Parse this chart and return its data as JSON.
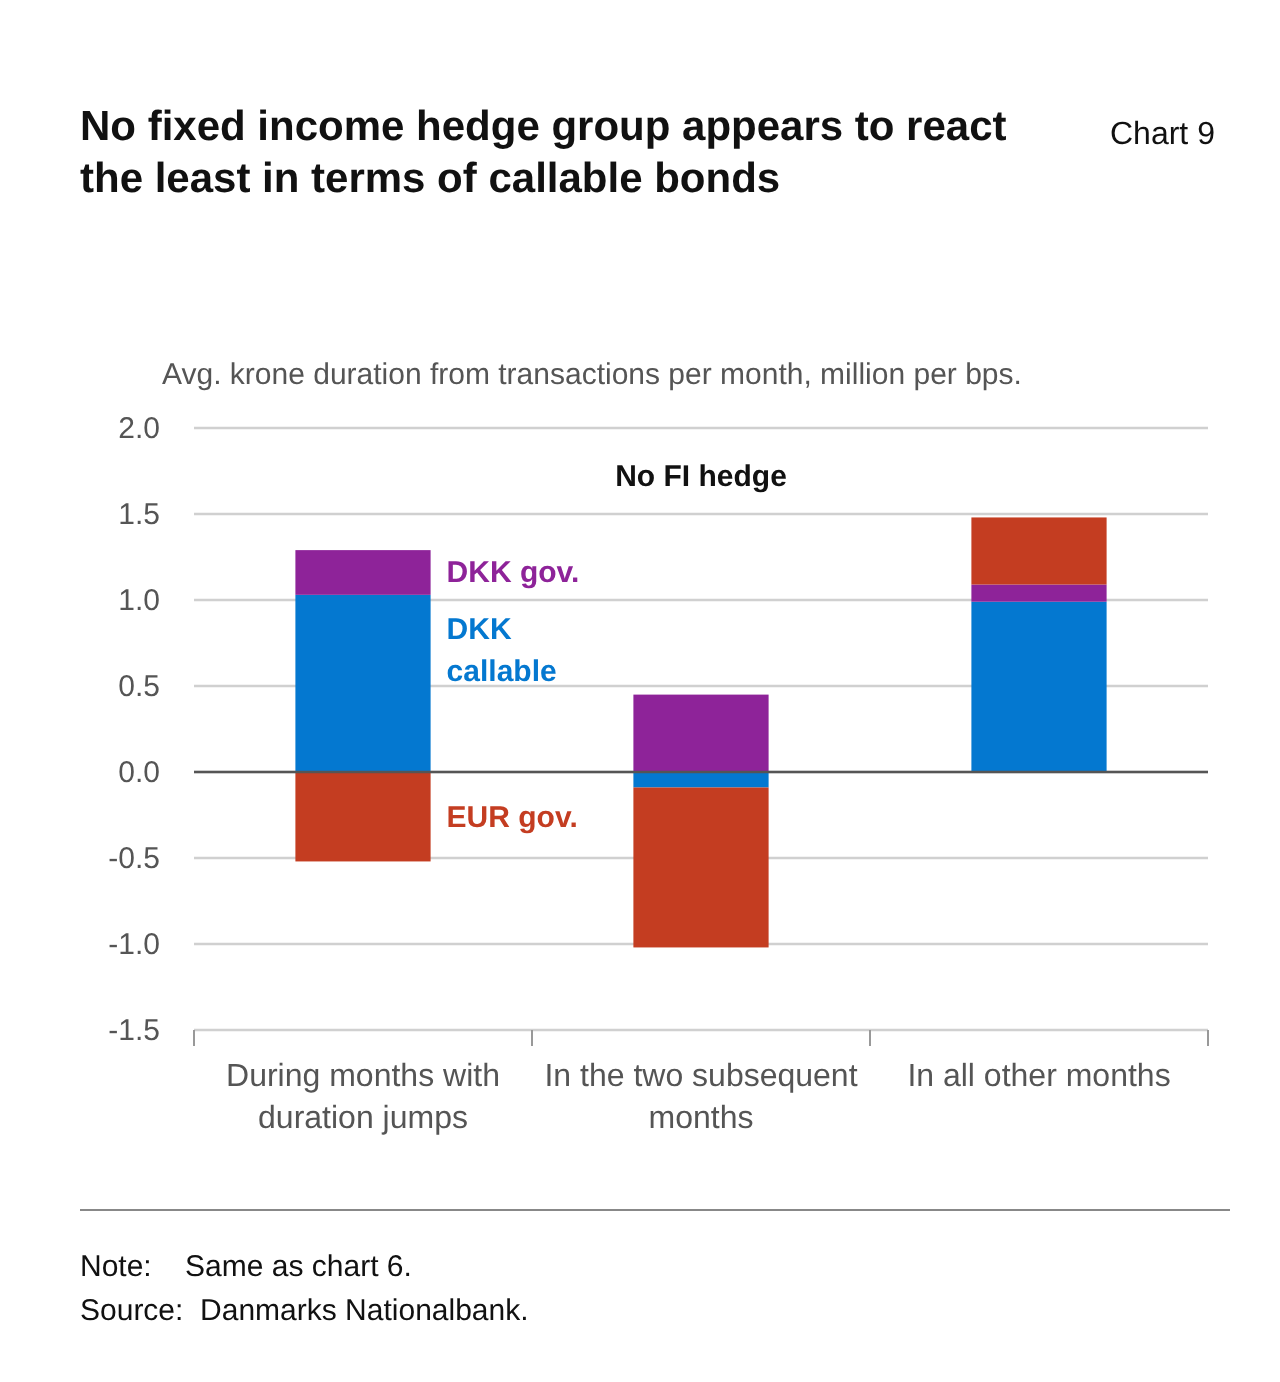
{
  "chart_data": {
    "type": "bar",
    "stacked": true,
    "title": "No fixed income hedge group appears to react the least in terms of callable bonds",
    "ylabel": "Avg. krone duration from transactions per month, million per bps.",
    "categories": [
      "During months with duration jumps",
      "In the two subsequent months",
      "In all other months"
    ],
    "series": [
      {
        "name": "DKK callable",
        "color": "#0478d0",
        "values": [
          1.03,
          -0.09,
          0.99
        ]
      },
      {
        "name": "DKK gov.",
        "color": "#8e2399",
        "values": [
          0.26,
          0.45,
          0.1
        ]
      },
      {
        "name": "EUR gov.",
        "color": "#c43d21",
        "values": [
          -0.52,
          -0.93,
          0.39
        ]
      }
    ],
    "ylim": [
      -1.5,
      2.0
    ],
    "yticks": [
      {
        "value": -1.5,
        "label": "-1.5"
      },
      {
        "value": -1.0,
        "label": "-1.0"
      },
      {
        "value": -0.5,
        "label": "-0.5"
      },
      {
        "value": 0,
        "label": "0.0"
      },
      {
        "value": 0.5,
        "label": "0.5"
      },
      {
        "value": 1.0,
        "label": "1.0"
      },
      {
        "value": 1.5,
        "label": "1.5"
      },
      {
        "value": 2.0,
        "label": "2.0"
      }
    ],
    "grid": "y",
    "annotations": [
      "Chart 9",
      "No FI hedge",
      "Note:    Same as chart 6.",
      "Source:  Danmarks Nationalbank."
    ]
  }
}
